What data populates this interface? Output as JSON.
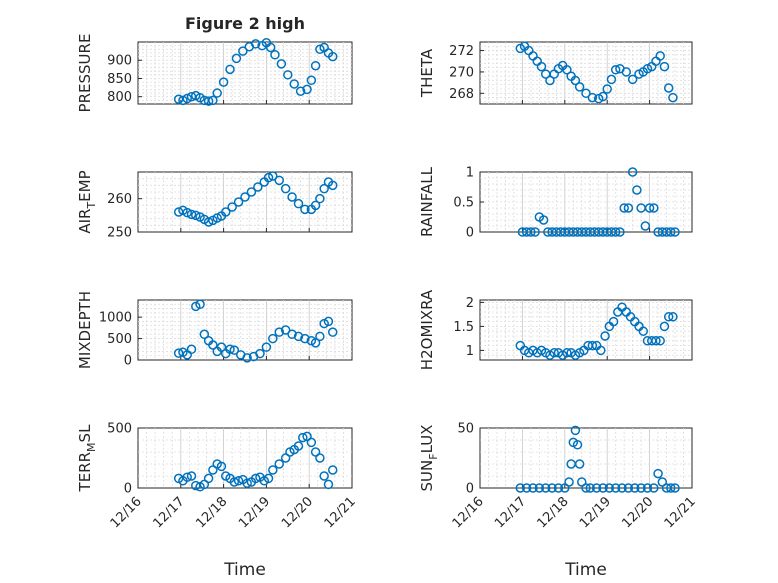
{
  "figure": {
    "title": "Figure 2 high",
    "marker_color": "#0072bd",
    "x_tick_labels": [
      "12/16",
      "12/17",
      "12/18",
      "12/19",
      "12/20",
      "12/21"
    ],
    "x_label": "Time"
  },
  "chart_data": [
    {
      "type": "scatter",
      "title": "Figure 2 high",
      "ylabel": "PRESSURE",
      "xlabel": "",
      "xlim": [
        0,
        5
      ],
      "ylim": [
        780,
        950
      ],
      "yticks": [
        800,
        850,
        900
      ],
      "ytick_labels": [
        "800",
        "850",
        "900"
      ],
      "x": [
        0.95,
        1.05,
        1.15,
        1.25,
        1.35,
        1.45,
        1.55,
        1.65,
        1.75,
        1.85,
        2.0,
        2.15,
        2.3,
        2.45,
        2.6,
        2.75,
        2.9,
        3.0,
        3.1,
        3.2,
        3.35,
        3.5,
        3.65,
        3.8,
        3.95,
        4.05,
        4.15,
        4.25,
        4.35,
        4.45,
        4.55
      ],
      "y": [
        793,
        790,
        795,
        800,
        803,
        797,
        790,
        788,
        790,
        810,
        840,
        875,
        905,
        925,
        937,
        945,
        940,
        948,
        935,
        915,
        890,
        860,
        835,
        815,
        820,
        845,
        885,
        930,
        935,
        920,
        910
      ]
    },
    {
      "type": "scatter",
      "title": "",
      "ylabel": "THETA",
      "xlabel": "",
      "xlim": [
        0,
        5
      ],
      "ylim": [
        267,
        272.8
      ],
      "yticks": [
        268,
        270,
        272
      ],
      "ytick_labels": [
        "268",
        "270",
        "272"
      ],
      "x": [
        0.95,
        1.05,
        1.15,
        1.25,
        1.35,
        1.45,
        1.55,
        1.65,
        1.75,
        1.85,
        1.95,
        2.05,
        2.15,
        2.25,
        2.35,
        2.5,
        2.65,
        2.8,
        2.9,
        3.0,
        3.1,
        3.2,
        3.3,
        3.45,
        3.6,
        3.75,
        3.85,
        3.95,
        4.05,
        4.15,
        4.25,
        4.35,
        4.45,
        4.55
      ],
      "y": [
        272.2,
        272.4,
        272,
        271.5,
        271,
        270.5,
        269.8,
        269.2,
        269.8,
        270.3,
        270.6,
        270.2,
        269.6,
        269.2,
        268.6,
        268,
        267.6,
        267.5,
        267.7,
        268.4,
        269.3,
        270.2,
        270.3,
        270,
        269.3,
        269.8,
        270,
        270.3,
        270.5,
        271,
        271.5,
        270.5,
        268.5,
        267.6
      ]
    },
    {
      "type": "scatter",
      "title": "",
      "ylabel": "AIR_TEMP",
      "xlabel": "",
      "xlim": [
        0,
        5
      ],
      "ylim": [
        250,
        268
      ],
      "yticks": [
        250,
        260
      ],
      "ytick_labels": [
        "250",
        "260"
      ],
      "x": [
        0.95,
        1.05,
        1.15,
        1.25,
        1.35,
        1.45,
        1.55,
        1.65,
        1.75,
        1.85,
        1.95,
        2.05,
        2.2,
        2.35,
        2.5,
        2.65,
        2.8,
        2.95,
        3.05,
        3.15,
        3.3,
        3.45,
        3.6,
        3.75,
        3.9,
        4.05,
        4.15,
        4.25,
        4.35,
        4.45,
        4.55
      ],
      "y": [
        256,
        256.5,
        255.8,
        255.3,
        255,
        254.5,
        253.8,
        253,
        253.5,
        254.2,
        254.8,
        256,
        257.5,
        259,
        260.5,
        262,
        263.5,
        265,
        266.3,
        266.8,
        265.5,
        263,
        260.5,
        258.5,
        256.8,
        256.8,
        258,
        260,
        263,
        265,
        264
      ]
    },
    {
      "type": "scatter",
      "title": "",
      "ylabel": "RAINFALL",
      "xlabel": "",
      "xlim": [
        0,
        5
      ],
      "ylim": [
        0,
        1
      ],
      "yticks": [
        0,
        0.5,
        1
      ],
      "ytick_labels": [
        "0",
        "0.5",
        "1"
      ],
      "x": [
        1.0,
        1.1,
        1.2,
        1.3,
        1.4,
        1.5,
        1.6,
        1.7,
        1.8,
        1.9,
        2.0,
        2.1,
        2.2,
        2.3,
        2.4,
        2.5,
        2.6,
        2.7,
        2.8,
        2.9,
        3.0,
        3.1,
        3.2,
        3.3,
        3.4,
        3.5,
        3.6,
        3.7,
        3.8,
        3.9,
        4.0,
        4.1,
        4.2,
        4.3,
        4.4,
        4.5,
        4.6
      ],
      "y": [
        0,
        0,
        0,
        0,
        0.25,
        0.2,
        0,
        0,
        0,
        0,
        0,
        0,
        0,
        0,
        0,
        0,
        0,
        0,
        0,
        0,
        0,
        0,
        0,
        0,
        0.4,
        0.4,
        1,
        0.7,
        0.4,
        0.1,
        0.4,
        0.4,
        0,
        0,
        0,
        0,
        0
      ]
    },
    {
      "type": "scatter",
      "title": "",
      "ylabel": "MIXDEPTH",
      "xlabel": "",
      "xlim": [
        0,
        5
      ],
      "ylim": [
        0,
        1400
      ],
      "yticks": [
        0,
        500,
        1000
      ],
      "ytick_labels": [
        "0",
        "500",
        "1000"
      ],
      "x": [
        0.95,
        1.05,
        1.15,
        1.25,
        1.35,
        1.45,
        1.55,
        1.65,
        1.75,
        1.85,
        1.95,
        2.05,
        2.15,
        2.25,
        2.4,
        2.55,
        2.7,
        2.85,
        3.0,
        3.15,
        3.3,
        3.45,
        3.6,
        3.75,
        3.9,
        4.05,
        4.15,
        4.25,
        4.35,
        4.45,
        4.55
      ],
      "y": [
        160,
        180,
        120,
        250,
        1250,
        1300,
        600,
        450,
        350,
        200,
        300,
        150,
        250,
        230,
        120,
        50,
        80,
        150,
        300,
        500,
        650,
        700,
        600,
        550,
        500,
        450,
        400,
        550,
        850,
        900,
        650
      ]
    },
    {
      "type": "scatter",
      "title": "",
      "ylabel": "H2OMIXRA",
      "xlabel": "",
      "xlim": [
        0,
        5
      ],
      "ylim": [
        0.8,
        2.05
      ],
      "yticks": [
        1,
        1.5,
        2
      ],
      "ytick_labels": [
        "1",
        "1.5",
        "2"
      ],
      "x": [
        0.95,
        1.05,
        1.15,
        1.25,
        1.35,
        1.45,
        1.55,
        1.65,
        1.75,
        1.85,
        1.95,
        2.05,
        2.15,
        2.25,
        2.35,
        2.45,
        2.55,
        2.65,
        2.75,
        2.85,
        2.95,
        3.05,
        3.15,
        3.25,
        3.35,
        3.45,
        3.55,
        3.65,
        3.75,
        3.85,
        3.95,
        4.05,
        4.15,
        4.25,
        4.35,
        4.45,
        4.55
      ],
      "y": [
        1.1,
        1.0,
        0.95,
        1.0,
        0.95,
        1.0,
        0.95,
        0.9,
        0.95,
        0.95,
        0.9,
        0.95,
        0.95,
        0.9,
        0.95,
        1.0,
        1.1,
        1.1,
        1.1,
        1.0,
        1.3,
        1.5,
        1.6,
        1.8,
        1.9,
        1.8,
        1.7,
        1.6,
        1.5,
        1.4,
        1.2,
        1.2,
        1.2,
        1.2,
        1.5,
        1.7,
        1.7
      ]
    },
    {
      "type": "scatter",
      "title": "",
      "ylabel": "TERR_MSL",
      "xlabel": "Time",
      "xlim": [
        0,
        5
      ],
      "ylim": [
        0,
        500
      ],
      "yticks": [
        0,
        500
      ],
      "ytick_labels": [
        "0",
        "500"
      ],
      "x": [
        0.95,
        1.05,
        1.15,
        1.25,
        1.35,
        1.45,
        1.55,
        1.65,
        1.75,
        1.85,
        1.95,
        2.05,
        2.15,
        2.25,
        2.35,
        2.45,
        2.55,
        2.65,
        2.75,
        2.85,
        2.95,
        3.05,
        3.15,
        3.3,
        3.45,
        3.55,
        3.65,
        3.75,
        3.85,
        3.95,
        4.05,
        4.15,
        4.25,
        4.35,
        4.45,
        4.55
      ],
      "y": [
        80,
        60,
        90,
        100,
        20,
        10,
        30,
        80,
        150,
        200,
        180,
        100,
        80,
        50,
        60,
        70,
        40,
        50,
        80,
        90,
        60,
        80,
        150,
        200,
        250,
        300,
        320,
        350,
        420,
        430,
        380,
        300,
        250,
        100,
        30,
        150
      ]
    },
    {
      "type": "scatter",
      "title": "",
      "ylabel": "SUN_FLUX",
      "xlabel": "Time",
      "xlim": [
        0,
        5
      ],
      "ylim": [
        0,
        50
      ],
      "yticks": [
        0,
        50
      ],
      "ytick_labels": [
        "0",
        "50"
      ],
      "x": [
        0.95,
        1.1,
        1.25,
        1.4,
        1.55,
        1.7,
        1.85,
        2.0,
        2.1,
        2.15,
        2.2,
        2.25,
        2.3,
        2.35,
        2.4,
        2.5,
        2.6,
        2.75,
        2.9,
        3.05,
        3.2,
        3.35,
        3.5,
        3.65,
        3.8,
        3.95,
        4.1,
        4.2,
        4.3,
        4.4,
        4.5,
        4.6
      ],
      "y": [
        0,
        0,
        0,
        0,
        0,
        0,
        0,
        0,
        5,
        20,
        38,
        48,
        36,
        20,
        5,
        0,
        0,
        0,
        0,
        0,
        0,
        0,
        0,
        0,
        0,
        0,
        0,
        12,
        5,
        0,
        0,
        0
      ]
    }
  ]
}
